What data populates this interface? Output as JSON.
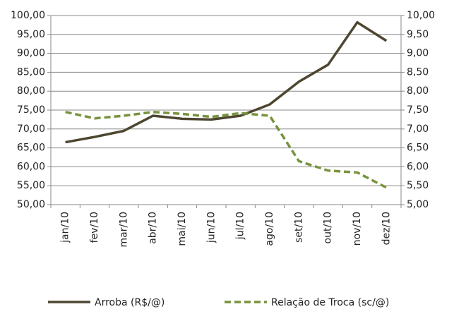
{
  "chart_data": {
    "type": "line",
    "categories": [
      "jan/10",
      "fev/10",
      "mar/10",
      "abr/10",
      "mai/10",
      "jun/10",
      "jul/10",
      "ago/10",
      "set/10",
      "out/10",
      "nov/10",
      "dez/10"
    ],
    "series": [
      {
        "name": "Arroba (R$/@)",
        "color": "#4d4630",
        "values": [
          66.5,
          67.9,
          69.5,
          73.5,
          72.7,
          72.5,
          73.5,
          76.5,
          82.5,
          87,
          98.2,
          93.3
        ]
      },
      {
        "name": "Relação de Troca (sc/@)",
        "color": "#77933c",
        "axis": "y2",
        "dashed": true,
        "values": [
          7.45,
          7.28,
          7.35,
          7.45,
          7.4,
          7.32,
          7.42,
          7.35,
          6.15,
          5.9,
          5.85,
          5.45
        ]
      }
    ],
    "ylim": [
      50,
      100
    ],
    "yticks": [
      {
        "value": 50,
        "label": "50,00"
      },
      {
        "value": 55,
        "label": "55,00"
      },
      {
        "value": 60,
        "label": "60,00"
      },
      {
        "value": 65,
        "label": "65,00"
      },
      {
        "value": 70,
        "label": "70,00"
      },
      {
        "value": 75,
        "label": "75,00"
      },
      {
        "value": 80,
        "label": "80,00"
      },
      {
        "value": 85,
        "label": "85,00"
      },
      {
        "value": 90,
        "label": "90,00"
      },
      {
        "value": 95,
        "label": "95,00"
      },
      {
        "value": 100,
        "label": "100,00"
      }
    ],
    "y2lim": [
      5,
      10
    ],
    "y2ticks": [
      {
        "value": 5,
        "label": "5,00"
      },
      {
        "value": 5.5,
        "label": "5,50"
      },
      {
        "value": 6,
        "label": "6,00"
      },
      {
        "value": 6.5,
        "label": "6,50"
      },
      {
        "value": 7,
        "label": "7,00"
      },
      {
        "value": 7.5,
        "label": "7,50"
      },
      {
        "value": 8,
        "label": "8,00"
      },
      {
        "value": 8.5,
        "label": "8,50"
      },
      {
        "value": 9,
        "label": "9,00"
      },
      {
        "value": 9.5,
        "label": "9,50"
      },
      {
        "value": 10,
        "label": "10,00"
      }
    ],
    "grid": true
  }
}
